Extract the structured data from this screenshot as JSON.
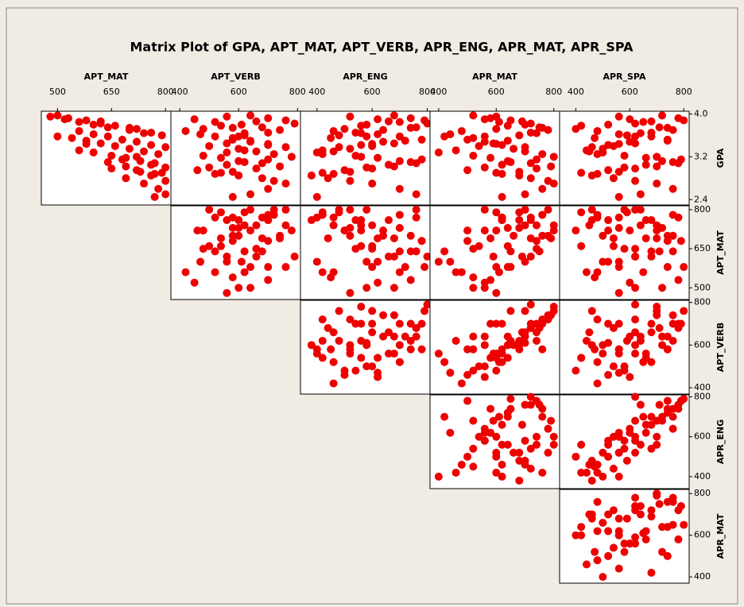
{
  "chart_data": {
    "type": "scatter-matrix",
    "title": "Matrix Plot of GPA, APT_MAT, APT_VERB, APR_ENG, APR_MAT, APR_SPA",
    "color": "#ee0000",
    "variables": [
      {
        "name": "GPA",
        "lim": [
          2.3,
          4.05
        ],
        "ticks": [
          {
            "value": 4,
            "label": "4.0"
          },
          3.2,
          2.4
        ]
      },
      {
        "name": "APT_MAT",
        "lim": [
          455,
          815
        ],
        "ticks": [
          500,
          650,
          800
        ]
      },
      {
        "name": "APT_VERB",
        "lim": [
          370,
          810
        ],
        "ticks": [
          400,
          600,
          800
        ]
      },
      {
        "name": "APR_ENG",
        "lim": [
          340,
          810
        ],
        "ticks": [
          400,
          600,
          800
        ]
      },
      {
        "name": "APR_MAT",
        "lim": [
          370,
          820
        ],
        "ticks": [
          400,
          600,
          800
        ]
      },
      {
        "name": "APR_SPA",
        "lim": [
          340,
          820
        ],
        "ticks": [
          400,
          600,
          800
        ]
      }
    ],
    "observations": [
      [
        3.95,
        480,
        560,
        520,
        600,
        560
      ],
      [
        3.9,
        520,
        450,
        620,
        560,
        600
      ],
      [
        3.85,
        560,
        520,
        700,
        610,
        650
      ],
      [
        3.8,
        600,
        610,
        580,
        700,
        520
      ],
      [
        3.75,
        640,
        680,
        760,
        750,
        710
      ],
      [
        3.7,
        700,
        740,
        640,
        780,
        760
      ],
      [
        3.65,
        760,
        700,
        540,
        720,
        680
      ],
      [
        3.6,
        790,
        620,
        480,
        680,
        590
      ],
      [
        3.55,
        540,
        580,
        450,
        520,
        470
      ],
      [
        3.5,
        580,
        640,
        720,
        640,
        740
      ],
      [
        3.45,
        620,
        560,
        680,
        590,
        620
      ],
      [
        3.4,
        660,
        500,
        600,
        540,
        540
      ],
      [
        3.35,
        700,
        600,
        520,
        660,
        500
      ],
      [
        3.3,
        740,
        660,
        460,
        700,
        450
      ],
      [
        3.25,
        780,
        720,
        420,
        760,
        480
      ],
      [
        3.2,
        720,
        780,
        560,
        800,
        700
      ],
      [
        3.15,
        680,
        700,
        780,
        740,
        790
      ],
      [
        3.1,
        640,
        620,
        740,
        650,
        760
      ],
      [
        3.05,
        760,
        560,
        660,
        620,
        660
      ],
      [
        3.0,
        800,
        500,
        580,
        560,
        580
      ],
      [
        2.95,
        720,
        460,
        500,
        500,
        520
      ],
      [
        2.9,
        790,
        540,
        420,
        600,
        420
      ],
      [
        2.85,
        760,
        600,
        380,
        680,
        460
      ],
      [
        2.8,
        690,
        680,
        440,
        720,
        540
      ],
      [
        2.75,
        800,
        720,
        520,
        780,
        620
      ],
      [
        2.7,
        740,
        760,
        600,
        800,
        700
      ],
      [
        2.6,
        780,
        700,
        700,
        760,
        760
      ],
      [
        2.5,
        800,
        640,
        760,
        700,
        640
      ],
      [
        2.45,
        770,
        580,
        400,
        620,
        560
      ],
      [
        3.97,
        500,
        640,
        680,
        520,
        720
      ],
      [
        3.92,
        530,
        700,
        740,
        580,
        780
      ],
      [
        3.88,
        580,
        760,
        790,
        650,
        800
      ],
      [
        3.82,
        620,
        790,
        800,
        720,
        620
      ],
      [
        3.78,
        660,
        540,
        560,
        640,
        420
      ],
      [
        3.72,
        720,
        480,
        500,
        600,
        400
      ],
      [
        3.68,
        560,
        420,
        460,
        480,
        480
      ],
      [
        3.62,
        600,
        470,
        620,
        440,
        560
      ],
      [
        3.58,
        640,
        520,
        700,
        420,
        680
      ],
      [
        3.52,
        680,
        580,
        780,
        500,
        740
      ],
      [
        3.48,
        720,
        640,
        640,
        560,
        600
      ],
      [
        3.42,
        760,
        700,
        560,
        620,
        520
      ],
      [
        3.38,
        800,
        760,
        480,
        700,
        460
      ],
      [
        3.32,
        560,
        620,
        420,
        460,
        440
      ],
      [
        3.28,
        600,
        560,
        400,
        400,
        500
      ],
      [
        3.22,
        650,
        480,
        540,
        520,
        580
      ],
      [
        3.18,
        690,
        540,
        620,
        580,
        660
      ],
      [
        3.12,
        730,
        600,
        700,
        640,
        720
      ],
      [
        3.08,
        770,
        680,
        760,
        720,
        780
      ],
      [
        3.02,
        690,
        740,
        680,
        790,
        700
      ],
      [
        2.98,
        650,
        660,
        600,
        740,
        620
      ],
      [
        2.92,
        730,
        580,
        520,
        680,
        560
      ],
      [
        2.88,
        770,
        520,
        460,
        620,
        480
      ],
      [
        3.58,
        500,
        600,
        580,
        560,
        620
      ],
      [
        3.86,
        620,
        660,
        660,
        690,
        680
      ],
      [
        3.74,
        700,
        580,
        740,
        760,
        740
      ],
      [
        3.44,
        580,
        700,
        600,
        600,
        560
      ],
      [
        3.64,
        740,
        620,
        560,
        740,
        640
      ]
    ]
  }
}
